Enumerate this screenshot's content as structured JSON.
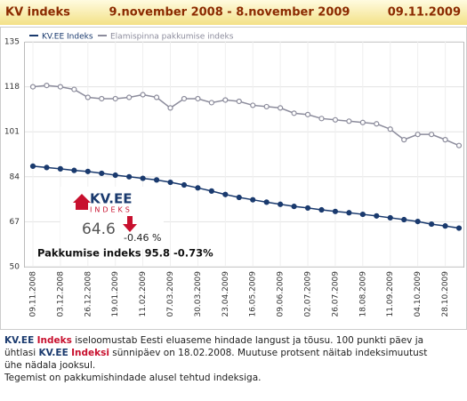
{
  "chart_data": {
    "type": "line",
    "title": "KV indeks",
    "subtitle": "9.november 2008 - 8.november 2009",
    "date": "09.11.2009",
    "categories": [
      "09.11.2008",
      null,
      "03.12.2008",
      null,
      "26.12.2008",
      null,
      "19.01.2009",
      null,
      "11.02.2009",
      null,
      "07.03.2009",
      null,
      "30.03.2009",
      null,
      "23.04.2009",
      null,
      "16.05.2009",
      null,
      "09.06.2009",
      null,
      "02.07.2009",
      null,
      "26.07.2009",
      null,
      "18.08.2009",
      null,
      "11.09.2009",
      null,
      "04.10.2009",
      null,
      "28.10.2009",
      null
    ],
    "series": [
      {
        "name": "KV.EE Indeks",
        "color": "#1a3a6e",
        "values": [
          88.0,
          87.5,
          87.0,
          86.4,
          86.0,
          85.3,
          84.6,
          84.0,
          83.4,
          82.8,
          81.9,
          80.9,
          79.8,
          78.6,
          77.3,
          76.2,
          75.3,
          74.4,
          73.6,
          72.8,
          72.2,
          71.5,
          70.9,
          70.4,
          69.8,
          69.2,
          68.5,
          67.8,
          67.1,
          66.1,
          65.4,
          64.6
        ]
      },
      {
        "name": "Elamispinna pakkumise indeks",
        "color": "#8c8c9c",
        "values": [
          118.0,
          118.5,
          118.0,
          117.0,
          114.0,
          113.5,
          113.5,
          114.0,
          115.0,
          114.0,
          110.0,
          113.5,
          113.5,
          112.0,
          113.0,
          112.5,
          111.0,
          110.5,
          110.0,
          108.0,
          107.5,
          106.0,
          105.5,
          105.0,
          104.5,
          104.0,
          102.0,
          98.0,
          100.0,
          100.0,
          98.0,
          95.8
        ]
      }
    ],
    "ylim": [
      50,
      135
    ],
    "yticks": [
      50,
      67,
      84,
      101,
      118,
      135
    ],
    "grid": true,
    "badge": {
      "brand": "KV.EE",
      "brand_sub": "INDEKS",
      "value": 64.6,
      "change": "-0.46 %"
    },
    "offer_line": "Pakkumise indeks 95.8  -0.73%"
  },
  "footer": [
    [
      "KV.EE",
      "Indeks",
      " iseloomustab Eesti eluaseme hindade langust ja tõusu. 100 punkti päev ja"
    ],
    [
      "ühtlasi ",
      "KV.EE",
      "Indeksi",
      " sünnipäev on 18.02.2008. Muutuse protsent näitab indeksimuutust"
    ],
    [
      "ühe nädala jooksul."
    ],
    [
      "Tegemist on pakkumishindade alusel tehtud indeksiga."
    ]
  ]
}
